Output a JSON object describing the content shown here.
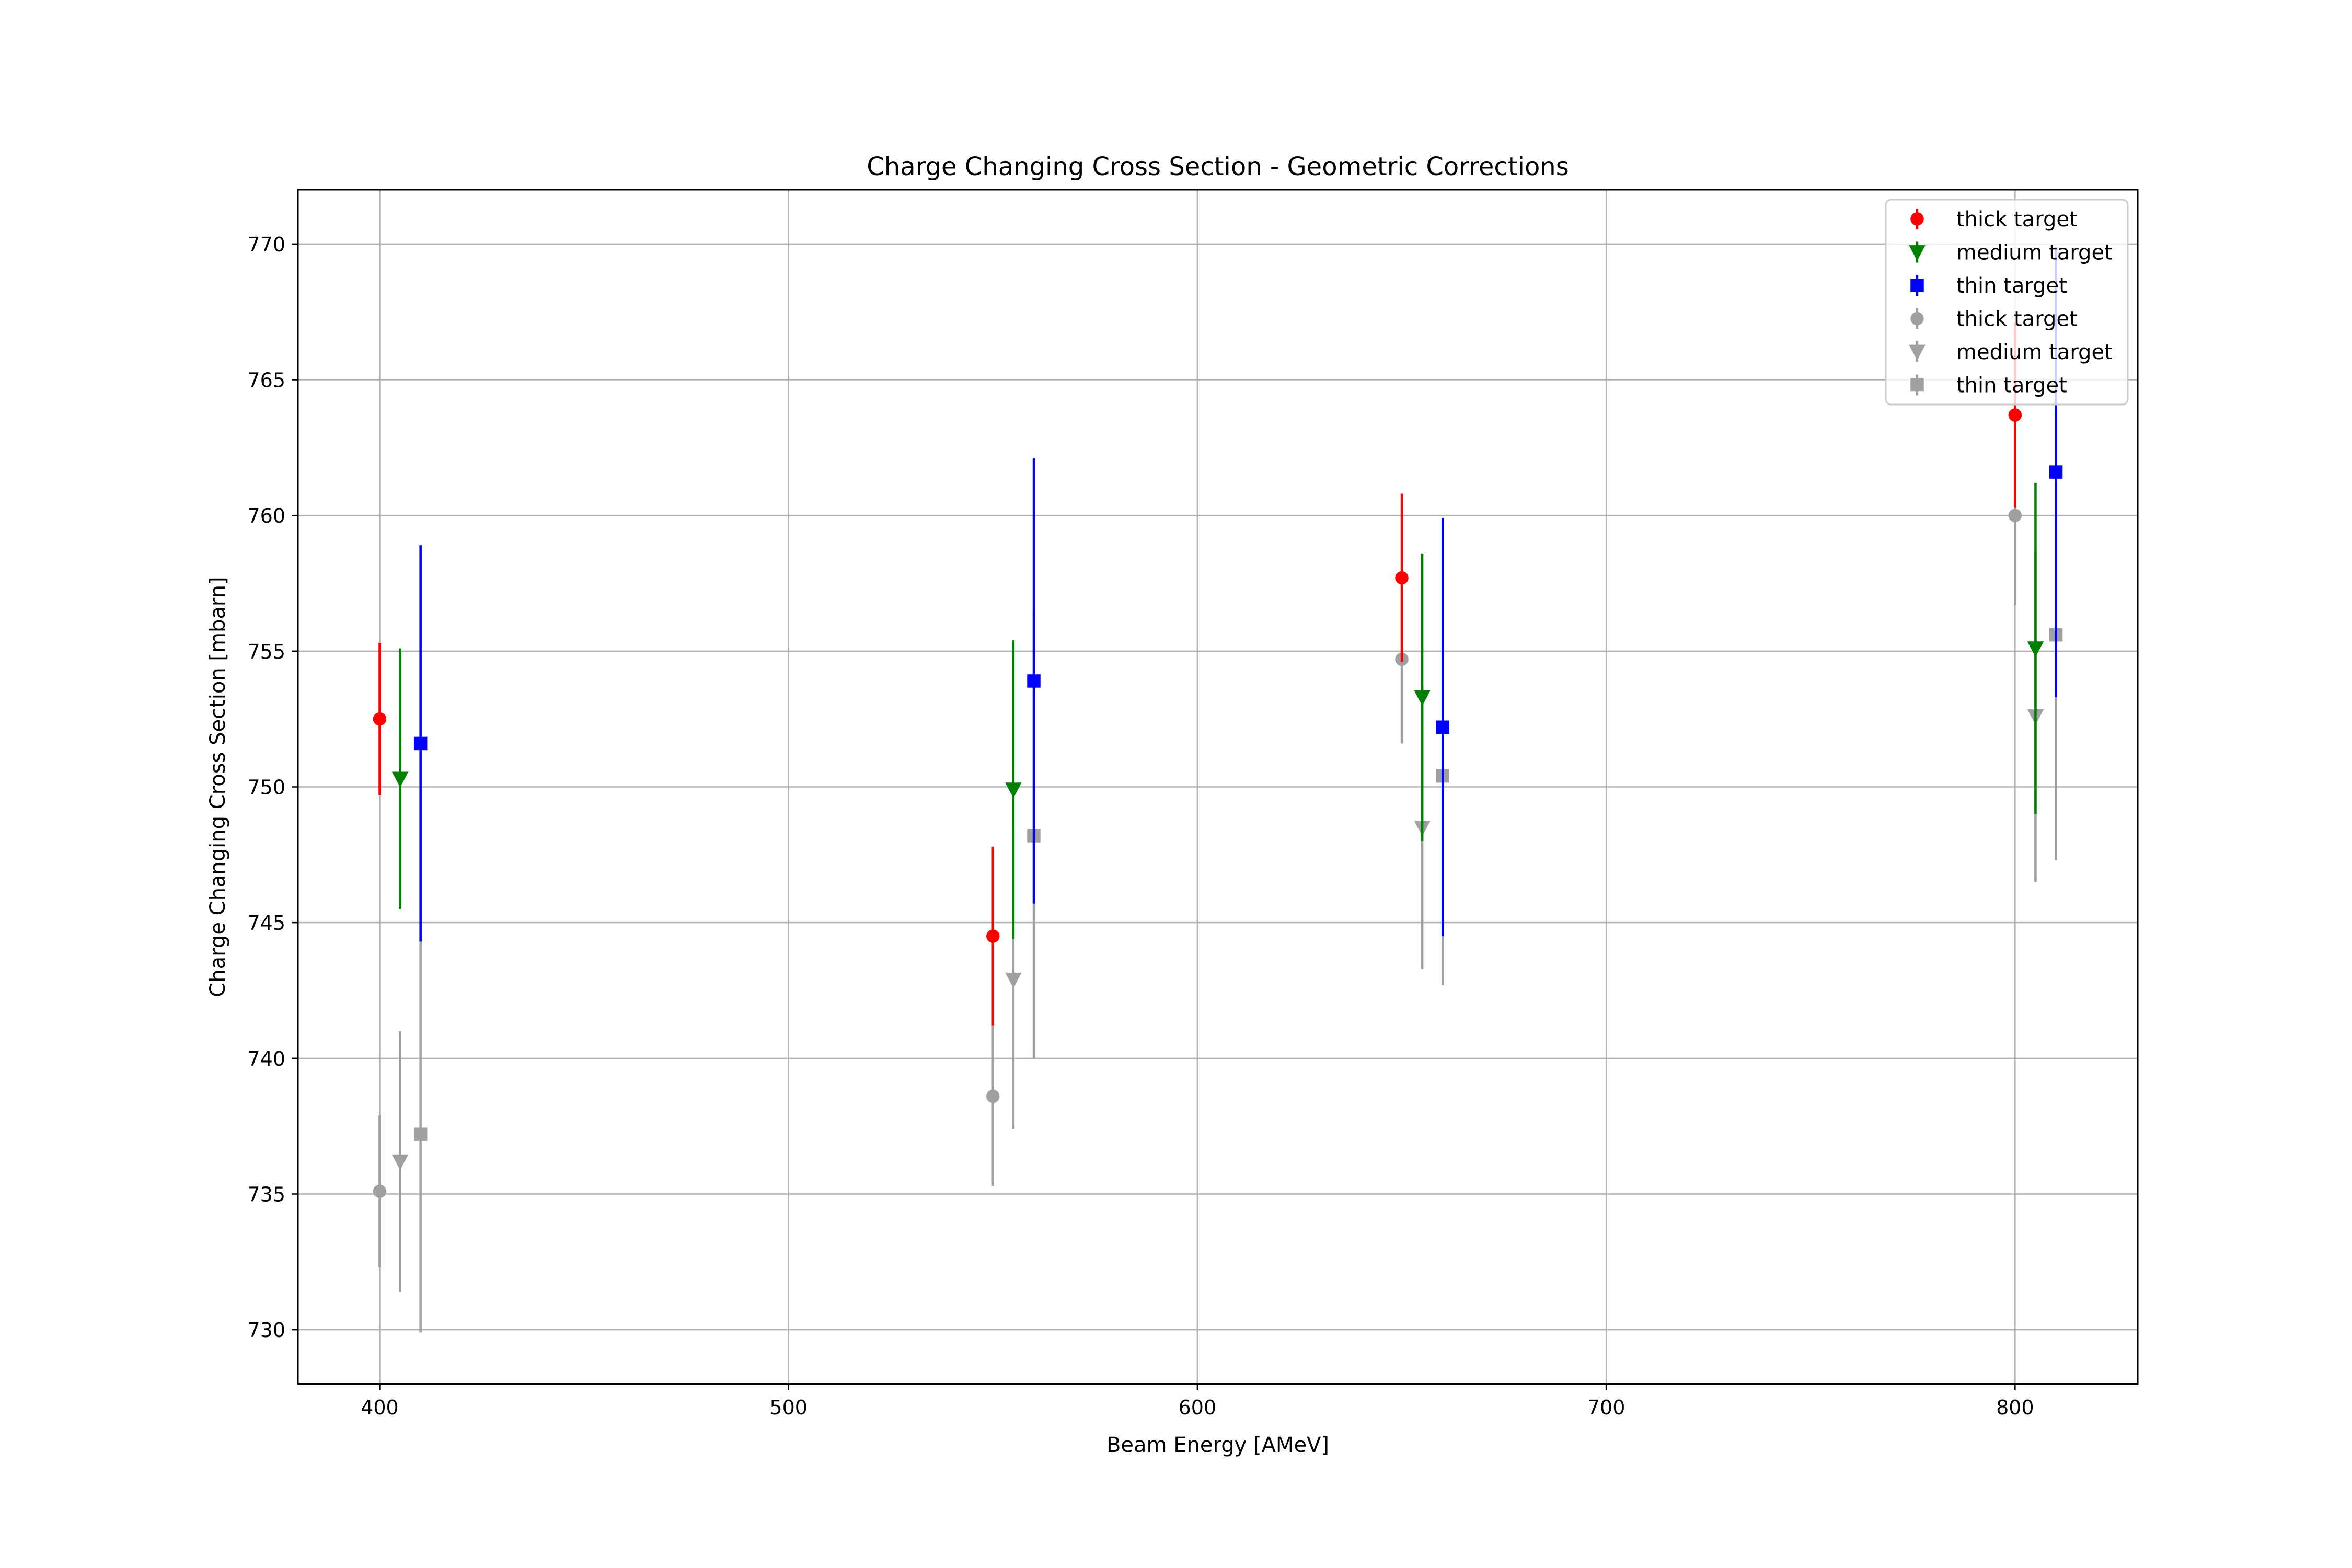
{
  "chart_data": {
    "type": "scatter",
    "title": "Charge Changing Cross Section - Geometric Corrections",
    "xlabel": "Beam Energy [AMeV]",
    "ylabel": "Charge Changing Cross Section [mbarn]",
    "xlim": [
      380,
      830
    ],
    "ylim": [
      728,
      772
    ],
    "xticks": [
      400,
      500,
      600,
      700,
      800
    ],
    "yticks": [
      730,
      735,
      740,
      745,
      750,
      755,
      760,
      765,
      770
    ],
    "grid": true,
    "legend_position": "top-right",
    "series": [
      {
        "name": "thick target",
        "color": "#ff0000",
        "marker": "circle",
        "x": [
          400,
          550,
          650,
          800
        ],
        "y": [
          752.5,
          744.5,
          757.7,
          763.7
        ],
        "yerr": [
          2.8,
          3.3,
          3.1,
          3.4
        ]
      },
      {
        "name": "medium target",
        "color": "#008000",
        "marker": "triangle-down",
        "x": [
          405,
          555,
          655,
          805
        ],
        "y": [
          750.3,
          749.9,
          753.3,
          755.1
        ],
        "yerr": [
          4.8,
          5.5,
          5.3,
          6.1
        ]
      },
      {
        "name": "thin target",
        "color": "#0000ff",
        "marker": "square",
        "x": [
          410,
          560,
          660,
          810
        ],
        "y": [
          751.6,
          753.9,
          752.2,
          761.6
        ],
        "yerr": [
          7.3,
          8.2,
          7.7,
          8.3
        ]
      },
      {
        "name": "thick target",
        "color": "#a0a0a0",
        "marker": "circle",
        "x": [
          400,
          550,
          650,
          800
        ],
        "y": [
          735.1,
          738.6,
          754.7,
          760.0
        ],
        "yerr": [
          2.8,
          3.3,
          3.1,
          3.3
        ]
      },
      {
        "name": "medium target",
        "color": "#a0a0a0",
        "marker": "triangle-down",
        "x": [
          405,
          555,
          655,
          805
        ],
        "y": [
          736.2,
          742.9,
          748.5,
          752.6
        ],
        "yerr": [
          4.8,
          5.5,
          5.2,
          6.1
        ]
      },
      {
        "name": "thin target",
        "color": "#a0a0a0",
        "marker": "square",
        "x": [
          410,
          560,
          660,
          810
        ],
        "y": [
          737.2,
          748.2,
          750.4,
          755.6
        ],
        "yerr": [
          7.3,
          8.2,
          7.7,
          8.3
        ]
      }
    ]
  }
}
